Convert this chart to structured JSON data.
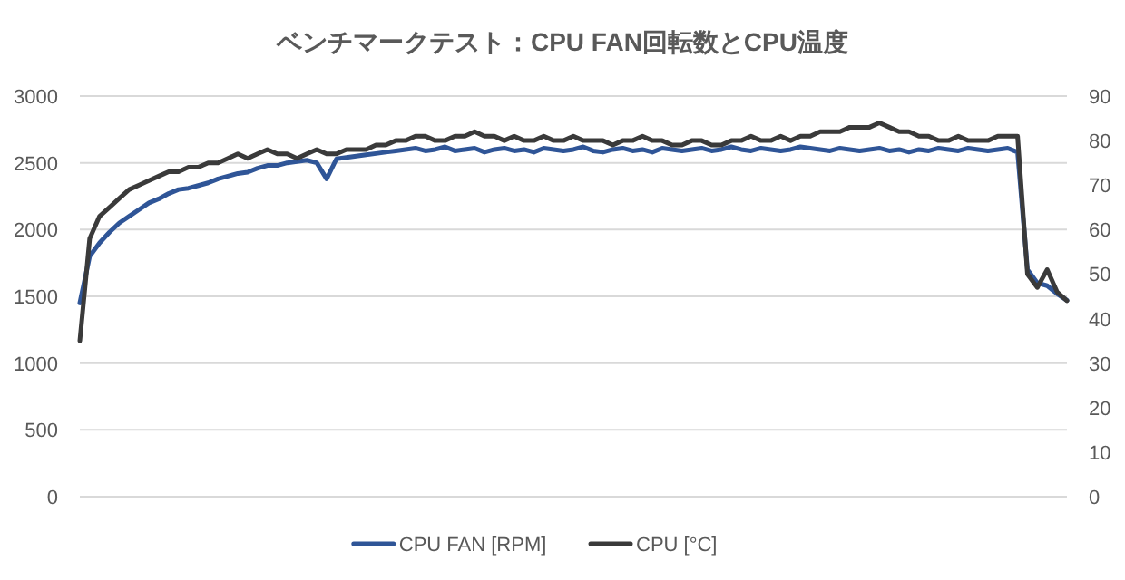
{
  "chart_data": {
    "type": "line",
    "title": "ベンチマークテスト：CPU FAN回転数とCPU温度",
    "categories": [
      null,
      null,
      null,
      null,
      null,
      null,
      null,
      null,
      null,
      null,
      null,
      null,
      null,
      null,
      null,
      null,
      null,
      null,
      null,
      null,
      null,
      null,
      null,
      null,
      null,
      null,
      null,
      null,
      null,
      null,
      null,
      null,
      null,
      null,
      null,
      null,
      null,
      null,
      null,
      null,
      null,
      null,
      null,
      null,
      null,
      null,
      null,
      null,
      null,
      null,
      null,
      null,
      null,
      null,
      null,
      null,
      null,
      null,
      null,
      null,
      null,
      null,
      null,
      null,
      null,
      null,
      null,
      null,
      null,
      null,
      null,
      null,
      null,
      null,
      null,
      null,
      null,
      null,
      null,
      null,
      null,
      null,
      null,
      null,
      null,
      null,
      null,
      null,
      null,
      null,
      null,
      null,
      null,
      null,
      null,
      null,
      null,
      null,
      null,
      null,
      null
    ],
    "series": [
      {
        "name": "CPU FAN [RPM]",
        "color": "#2f5597",
        "values": [
          1450,
          1800,
          1900,
          1980,
          2050,
          2100,
          2150,
          2200,
          2230,
          2270,
          2300,
          2310,
          2330,
          2350,
          2380,
          2400,
          2420,
          2430,
          2460,
          2480,
          2480,
          2500,
          2510,
          2520,
          2500,
          2380,
          2530,
          2540,
          2550,
          2560,
          2570,
          2580,
          2590,
          2600,
          2610,
          2590,
          2600,
          2620,
          2590,
          2600,
          2610,
          2580,
          2600,
          2610,
          2590,
          2600,
          2580,
          2610,
          2600,
          2590,
          2600,
          2620,
          2590,
          2580,
          2600,
          2610,
          2590,
          2600,
          2580,
          2610,
          2600,
          2590,
          2600,
          2610,
          2590,
          2600,
          2620,
          2600,
          2590,
          2610,
          2600,
          2590,
          2600,
          2620,
          2610,
          2600,
          2590,
          2610,
          2600,
          2590,
          2600,
          2610,
          2590,
          2600,
          2580,
          2600,
          2590,
          2610,
          2600,
          2590,
          2610,
          2600,
          2590,
          2600,
          2610,
          2580,
          1700,
          1600,
          1580,
          1520,
          1470
        ]
      },
      {
        "name": "CPU [°C]",
        "color": "#3a3a3a",
        "axis": "y2",
        "values": [
          35,
          58,
          63,
          65,
          67,
          69,
          70,
          71,
          72,
          73,
          73,
          74,
          74,
          75,
          75,
          76,
          77,
          76,
          77,
          78,
          77,
          77,
          76,
          77,
          78,
          77,
          77,
          78,
          78,
          78,
          79,
          79,
          80,
          80,
          81,
          81,
          80,
          80,
          81,
          81,
          82,
          81,
          81,
          80,
          81,
          80,
          80,
          81,
          80,
          80,
          81,
          80,
          80,
          80,
          79,
          80,
          80,
          81,
          80,
          80,
          79,
          79,
          80,
          80,
          79,
          79,
          80,
          80,
          81,
          80,
          80,
          81,
          80,
          81,
          81,
          82,
          82,
          82,
          83,
          83,
          83,
          84,
          83,
          82,
          82,
          81,
          81,
          80,
          80,
          81,
          80,
          80,
          80,
          81,
          81,
          81,
          50,
          47,
          51,
          46,
          44
        ]
      }
    ],
    "ylim": [
      0,
      3000
    ],
    "yticks": [
      0,
      500,
      1000,
      1500,
      2000,
      2500,
      3000
    ],
    "y2lim": [
      0,
      90
    ],
    "y2ticks": [
      0,
      10,
      20,
      30,
      40,
      50,
      60,
      70,
      80,
      90
    ],
    "grid": "y",
    "legend": "bottom"
  }
}
